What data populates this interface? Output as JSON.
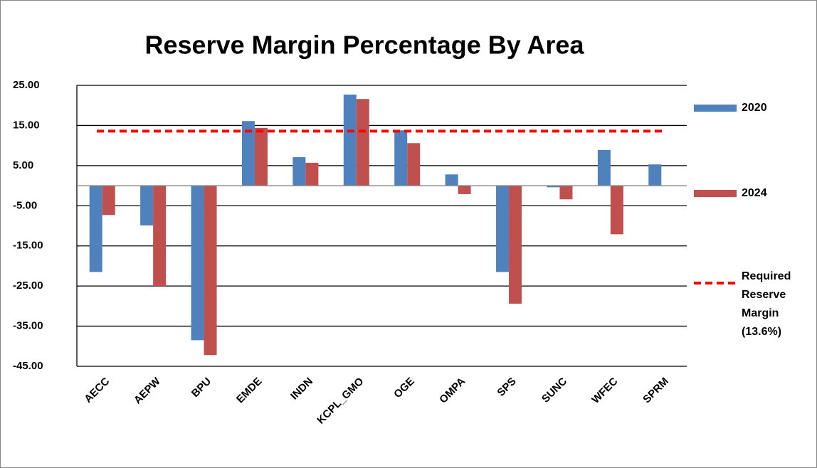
{
  "chart_data": {
    "type": "bar",
    "title": "Reserve Margin Percentage By Area",
    "categories": [
      "AECC",
      "AEPW",
      "BPU",
      "EMDE",
      "INDN",
      "KCPL_GMO",
      "OGE",
      "OMPA",
      "SPS",
      "SUNC",
      "WFEC",
      "SPRM"
    ],
    "series": [
      {
        "name": "2020",
        "color": "#4f81bd",
        "values": [
          -21.5,
          -9.9,
          -38.5,
          16.1,
          7.1,
          22.7,
          13.8,
          2.8,
          -21.5,
          -0.4,
          8.9,
          5.3
        ]
      },
      {
        "name": "2024",
        "color": "#c0504d",
        "values": [
          -7.3,
          -25.0,
          -42.2,
          14.4,
          5.7,
          21.6,
          10.6,
          -2.1,
          -29.4,
          -3.4,
          -12.1,
          null
        ]
      }
    ],
    "reference_line": {
      "name": "Required Reserve Margin (13.6%)",
      "value": 13.6,
      "color": "#ff0000"
    },
    "ylim": [
      -45,
      25
    ],
    "yticks": [
      {
        "value": 25,
        "label": "25.00"
      },
      {
        "value": 15,
        "label": "15.00"
      },
      {
        "value": 5,
        "label": "5.00"
      },
      {
        "value": -5,
        "label": "-5.00"
      },
      {
        "value": -15,
        "label": "-15.00"
      },
      {
        "value": -25,
        "label": "-25.00"
      },
      {
        "value": -35,
        "label": "-35.00"
      },
      {
        "value": -45,
        "label": "-45.00"
      }
    ],
    "grid": true
  }
}
